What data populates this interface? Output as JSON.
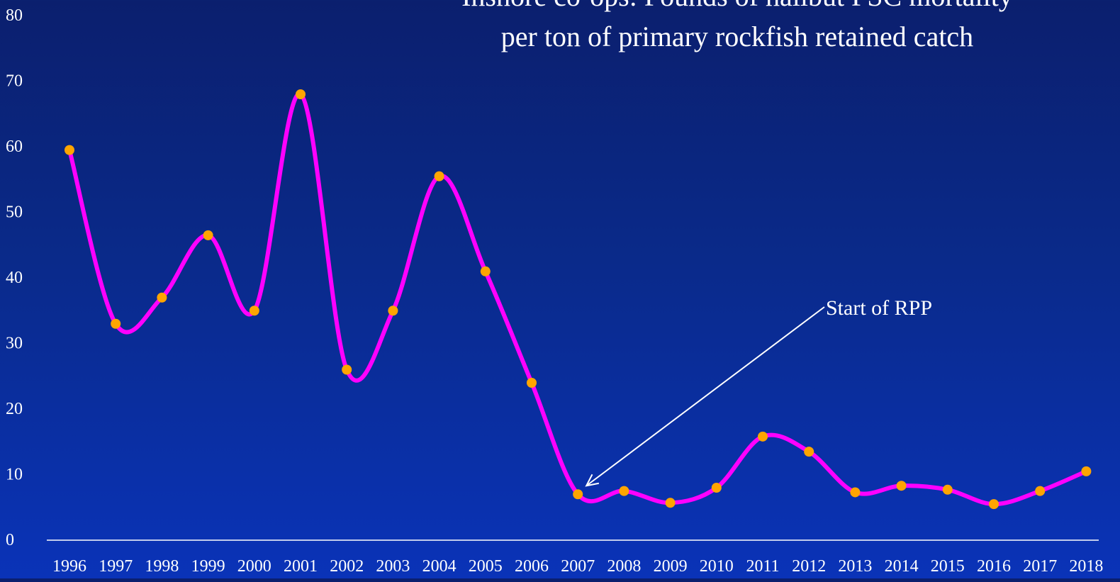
{
  "colors": {
    "line": "#ff00ff",
    "marker": "#ffa500",
    "text": "#ffffff",
    "axis": "#ffffff",
    "background_top": "#0b1f6e",
    "background_bottom": "#0a33b8"
  },
  "chart_data": {
    "type": "line",
    "title_line1": "Inshore co-ops: Pounds of halibut PSC mortality",
    "title_line2": "per ton of primary rockfish retained catch",
    "categories": [
      "1996",
      "1997",
      "1998",
      "1999",
      "2000",
      "2001",
      "2002",
      "2003",
      "2004",
      "2005",
      "2006",
      "2007",
      "2008",
      "2009",
      "2010",
      "2011",
      "2012",
      "2013",
      "2014",
      "2015",
      "2016",
      "2017",
      "2018"
    ],
    "series": [
      {
        "values": [
          59.5,
          33.0,
          37.0,
          46.5,
          35.0,
          68.0,
          26.0,
          35.0,
          55.5,
          41.0,
          24.0,
          7.0,
          7.5,
          5.7,
          8.0,
          15.8,
          13.5,
          7.3,
          8.3,
          7.7,
          5.5,
          7.5,
          10.5
        ]
      }
    ],
    "ylim": [
      0,
      80
    ],
    "yticks": [
      "0",
      "10",
      "20",
      "30",
      "40",
      "50",
      "60",
      "70",
      "80"
    ],
    "grid": false,
    "smooth": true,
    "annotation": {
      "text": "Start of RPP",
      "target_category": "2007"
    },
    "xlabel": "",
    "ylabel": ""
  }
}
